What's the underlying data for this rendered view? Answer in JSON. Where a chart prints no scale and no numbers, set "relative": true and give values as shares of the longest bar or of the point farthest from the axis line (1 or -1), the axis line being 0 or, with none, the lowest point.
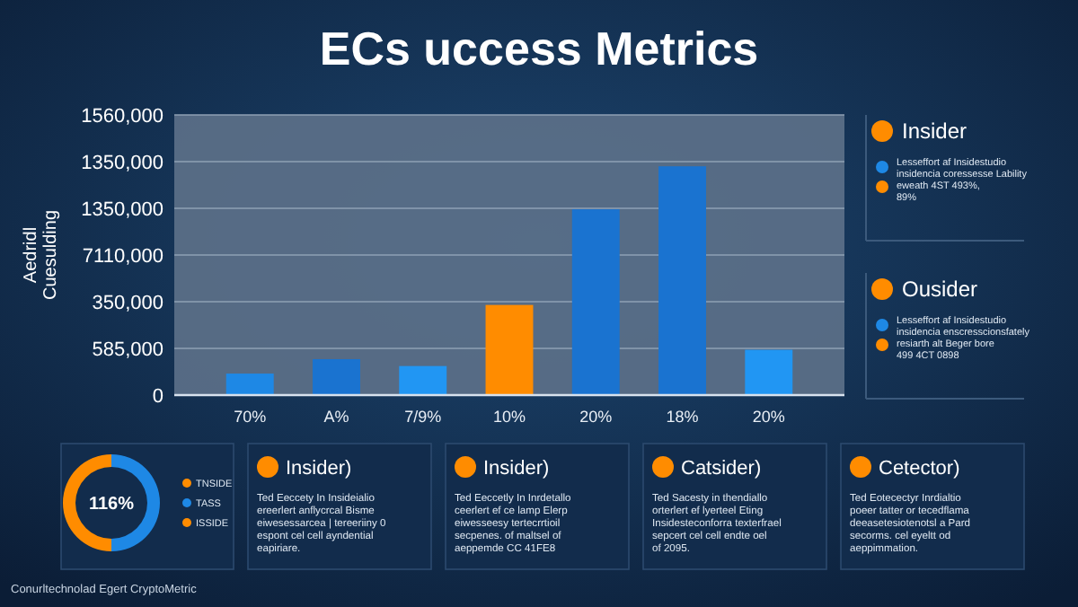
{
  "chart_data": [
    {
      "type": "bar",
      "title": "ECs uccess Metrics",
      "ylabel": "Aedridl Cuesulding",
      "categories": [
        "70%",
        "A%",
        "7/9%",
        "10%",
        "20%",
        "18%",
        "20%"
      ],
      "values": [
        0.094,
        0.157,
        0.127,
        0.394,
        0.812,
        1,
        0.198
      ],
      "colors": [
        "#1e88e5",
        "#1a73d0",
        "#2196f3",
        "#ff8c00",
        "#1a73d0",
        "#1a73d0",
        "#2196f3"
      ],
      "relative": true,
      "grid": "y",
      "annotations": [
        "Conurltechnolad Egert CryptoMetric",
        "0",
        "585,000",
        "350,000",
        "7110,000",
        "1350,000",
        "1350,000",
        "1560,000"
      ]
    },
    {
      "type": "other",
      "categories": [
        "Insider",
        "Ousider"
      ],
      "annotations": [
        "Lesseffort af Insidestudio",
        "insidencia coressesse Lability",
        "eweath 4ST 493%,",
        "89%",
        "Lesseffort af Insidestudio",
        "insidencia enscresscionsfately",
        "resiarth alt Beger bore",
        "499 4CT 0898"
      ]
    },
    {
      "type": "donut",
      "categories": [
        "TNSIDE",
        "TASS"
      ],
      "values": [
        50,
        50
      ],
      "colors": [
        "#ff8c00",
        "#1e88e5"
      ],
      "legend": "right",
      "annotations": [
        "116%",
        "ISSIDE"
      ]
    },
    {
      "type": "other",
      "categories": [
        "Insider)",
        "Insider)",
        "Catsider)",
        "Cetector)"
      ],
      "annotations": [
        "Ted Eeccety In Insideialio",
        "ereerlert anflycrcal Bisme",
        "eiwesessarcea | tereeriiny 0",
        "espont cel cell ayndential",
        "eapiriare.",
        "Ted Eeccetly In Inrdetallo",
        "ceerlert ef ce lamp Elerp",
        "eiwesseesy tertecrrtioil",
        "secpenes. of maltsel of",
        "aeppemde CC 41FE8",
        "Ted Sacesty in thendiallo",
        "orterlert ef lyerteel Eting",
        "Insidesteconforra texterfrael",
        "sepcert cel cell endte oel",
        "of 2095.",
        "Ted Eotecectyr Inrdialtio",
        "poeer tatter or tecedflama",
        "deeasetesiotenotsl a Pard",
        "secorms. cel eyeltt od",
        "aeppimmation."
      ]
    }
  ]
}
